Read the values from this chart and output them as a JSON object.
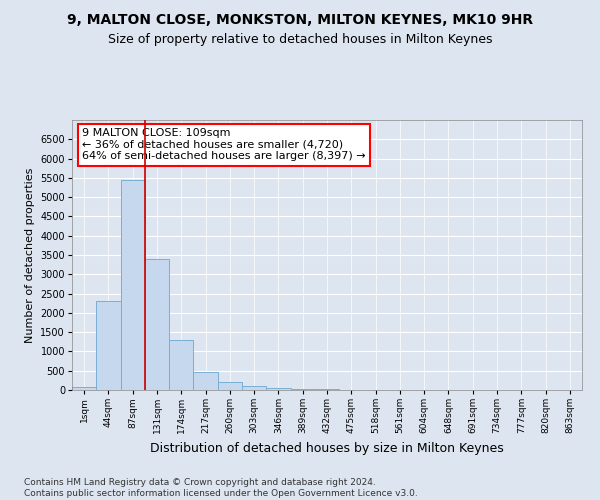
{
  "title1": "9, MALTON CLOSE, MONKSTON, MILTON KEYNES, MK10 9HR",
  "title2": "Size of property relative to detached houses in Milton Keynes",
  "xlabel": "Distribution of detached houses by size in Milton Keynes",
  "ylabel": "Number of detached properties",
  "categories": [
    "1sqm",
    "44sqm",
    "87sqm",
    "131sqm",
    "174sqm",
    "217sqm",
    "260sqm",
    "303sqm",
    "346sqm",
    "389sqm",
    "432sqm",
    "475sqm",
    "518sqm",
    "561sqm",
    "604sqm",
    "648sqm",
    "691sqm",
    "734sqm",
    "777sqm",
    "820sqm",
    "863sqm"
  ],
  "values": [
    75,
    2300,
    5450,
    3400,
    1300,
    475,
    200,
    100,
    50,
    30,
    15,
    10,
    5,
    3,
    2,
    2,
    2,
    2,
    2,
    2,
    2
  ],
  "bar_color": "#c5d8ed",
  "bar_edge_color": "#7aaed4",
  "ref_line_x": 2.5,
  "ref_line_color": "#cc0000",
  "annotation_text": "9 MALTON CLOSE: 109sqm\n← 36% of detached houses are smaller (4,720)\n64% of semi-detached houses are larger (8,397) →",
  "annotation_box_color": "white",
  "annotation_box_edge_color": "red",
  "ylim": [
    0,
    7000
  ],
  "yticks": [
    0,
    500,
    1000,
    1500,
    2000,
    2500,
    3000,
    3500,
    4000,
    4500,
    5000,
    5500,
    6000,
    6500
  ],
  "footer": "Contains HM Land Registry data © Crown copyright and database right 2024.\nContains public sector information licensed under the Open Government Licence v3.0.",
  "bg_color": "#dde6f0",
  "plot_bg_color": "#dde6f0",
  "title1_fontsize": 10,
  "title2_fontsize": 9,
  "xlabel_fontsize": 9,
  "ylabel_fontsize": 8,
  "footer_fontsize": 6.5,
  "annotation_fontsize": 8
}
